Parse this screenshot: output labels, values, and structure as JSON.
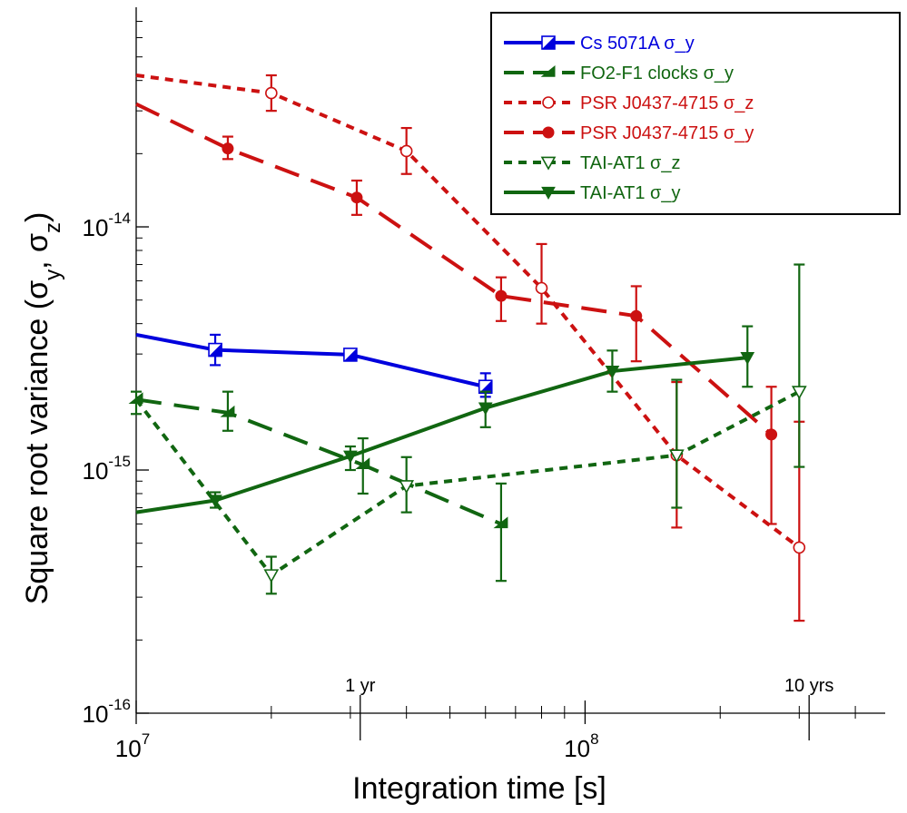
{
  "chart_data": {
    "type": "line",
    "title": "",
    "xlabel": "Integration time [s]",
    "ylabel_main": "Square root variance (σ",
    "ylabel_sub1": "y",
    "ylabel_sep": ", σ",
    "ylabel_sub2": "z",
    "ylabel_end": ")",
    "x_scale": "log",
    "y_scale": "log",
    "xlim": [
      10000000,
      500000000
    ],
    "ylim": [
      1e-16,
      8e-14
    ],
    "grid": false,
    "legend_position": "top-right",
    "x_ticks": [
      {
        "value": 10000000,
        "base": "10",
        "exp": "7"
      },
      {
        "value": 100000000,
        "base": "10",
        "exp": "8"
      }
    ],
    "y_ticks": [
      {
        "value": 1e-16,
        "base": "10",
        "exp": "-16"
      },
      {
        "value": 1e-15,
        "base": "10",
        "exp": "-15"
      },
      {
        "value": 1e-14,
        "base": "10",
        "exp": "-14"
      }
    ],
    "annotations": [
      {
        "text": "1 yr",
        "x": 31557600
      },
      {
        "text": "10 yrs",
        "x": 315576000
      }
    ],
    "series": [
      {
        "name": "Cs 5071A σ_y",
        "color": "#0000dd",
        "dash": "solid",
        "marker": "half-square",
        "points": [
          {
            "x": 10000000,
            "y": 3.6e-15
          },
          {
            "x": 15000000,
            "y": 3.12e-15,
            "lo": 2.7e-15,
            "hi": 3.6e-15
          },
          {
            "x": 30000000,
            "y": 2.98e-15
          },
          {
            "x": 60000000,
            "y": 2.2e-15,
            "lo": 2e-15,
            "hi": 2.5e-15
          }
        ]
      },
      {
        "name": "FO2-F1 clocks σ_y",
        "color": "#116611",
        "dash": "longdash",
        "marker": "half-triangle",
        "points": [
          {
            "x": 10000000,
            "y": 1.95e-15,
            "lo": 1.7e-15,
            "hi": 2.1e-15
          },
          {
            "x": 16000000,
            "y": 1.72e-15,
            "lo": 1.45e-15,
            "hi": 2.1e-15
          },
          {
            "x": 32000000,
            "y": 1.05e-15,
            "lo": 8e-16,
            "hi": 1.35e-15
          },
          {
            "x": 65000000,
            "y": 6e-16,
            "lo": 3.5e-16,
            "hi": 8.8e-16
          }
        ]
      },
      {
        "name": "PSR J0437-4715 σ_z",
        "color": "#cc1111",
        "dash": "shortdash",
        "marker": "open-circle",
        "points": [
          {
            "x": 10000000,
            "y": 4.2e-14
          },
          {
            "x": 20000000,
            "y": 3.55e-14,
            "lo": 3e-14,
            "hi": 4.2e-14
          },
          {
            "x": 40000000,
            "y": 2.05e-14,
            "lo": 1.65e-14,
            "hi": 2.55e-14
          },
          {
            "x": 80000000,
            "y": 5.6e-15,
            "lo": 4e-15,
            "hi": 8.5e-15
          },
          {
            "x": 160000000,
            "y": 1.15e-15,
            "lo": 5.8e-16,
            "hi": 2.3e-15
          },
          {
            "x": 300000000,
            "y": 4.8e-16,
            "lo": 2.4e-16,
            "hi": 1.58e-15
          }
        ]
      },
      {
        "name": "PSR  J0437-4715 σ_y",
        "color": "#cc1111",
        "dash": "longdash",
        "marker": "filled-circle",
        "points": [
          {
            "x": 10000000,
            "y": 3.2e-14
          },
          {
            "x": 16000000,
            "y": 2.1e-14,
            "lo": 1.9e-14,
            "hi": 2.35e-14
          },
          {
            "x": 31000000,
            "y": 1.32e-14,
            "lo": 1.12e-14,
            "hi": 1.55e-14
          },
          {
            "x": 65000000,
            "y": 5.2e-15,
            "lo": 4.1e-15,
            "hi": 6.2e-15
          },
          {
            "x": 130000000,
            "y": 4.3e-15,
            "lo": 2.8e-15,
            "hi": 5.7e-15
          },
          {
            "x": 260000000,
            "y": 1.4e-15,
            "lo": 6e-16,
            "hi": 2.2e-15
          }
        ]
      },
      {
        "name": "TAI-AT1 σ_z",
        "color": "#116611",
        "dash": "shortdash",
        "marker": "open-triangle-down",
        "points": [
          {
            "x": 10000000,
            "y": 1.95e-15
          },
          {
            "x": 20000000,
            "y": 3.7e-16,
            "lo": 3.1e-16,
            "hi": 4.4e-16
          },
          {
            "x": 40000000,
            "y": 8.6e-16,
            "lo": 6.7e-16,
            "hi": 1.13e-15
          },
          {
            "x": 160000000,
            "y": 1.15e-15,
            "lo": 7e-16,
            "hi": 2.35e-15
          },
          {
            "x": 300000000,
            "y": 2.1e-15,
            "lo": 1.03e-15,
            "hi": 7e-15
          }
        ]
      },
      {
        "name": "TAI-AT1 σ_y",
        "color": "#116611",
        "dash": "solid",
        "marker": "filled-triangle-down",
        "points": [
          {
            "x": 10000000,
            "y": 6.7e-16
          },
          {
            "x": 15000000,
            "y": 7.5e-16,
            "lo": 7e-16,
            "hi": 8.1e-16
          },
          {
            "x": 30000000,
            "y": 1.14e-15,
            "lo": 1e-15,
            "hi": 1.25e-15
          },
          {
            "x": 60000000,
            "y": 1.8e-15,
            "lo": 1.5e-15,
            "hi": 2.1e-15
          },
          {
            "x": 115000000,
            "y": 2.55e-15,
            "lo": 2.1e-15,
            "hi": 3.1e-15
          },
          {
            "x": 230000000,
            "y": 2.9e-15,
            "lo": 2.2e-15,
            "hi": 3.9e-15
          }
        ]
      }
    ]
  }
}
